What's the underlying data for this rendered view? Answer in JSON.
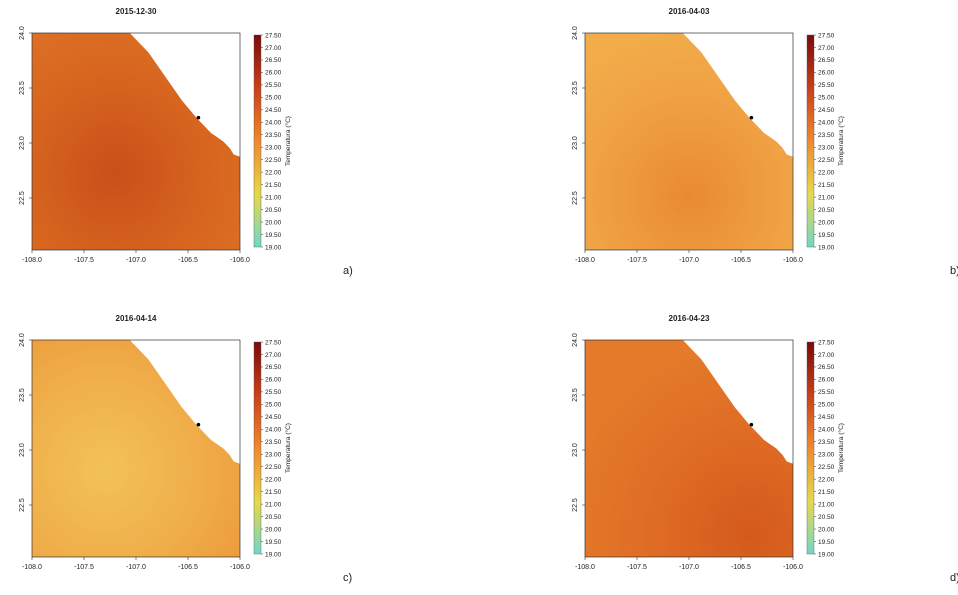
{
  "panels": [
    {
      "title": "2015-12-30",
      "letter": "a)"
    },
    {
      "title": "2016-04-03",
      "letter": "b)"
    },
    {
      "title": "2016-04-14",
      "letter": "c)"
    },
    {
      "title": "2016-04-23",
      "letter": "d)"
    }
  ],
  "x_ticks": [
    "-108.0",
    "-107.5",
    "-107.0",
    "-106.5",
    "-106.0"
  ],
  "y_ticks": [
    "24.0",
    "23.5",
    "23.0",
    "22.5"
  ],
  "colorbar": {
    "label": "Temperatura (°C)",
    "ticks": [
      "27.50",
      "27.00",
      "26.50",
      "26.00",
      "25.50",
      "25.00",
      "24.50",
      "24.00",
      "23.50",
      "23.00",
      "22.50",
      "22.00",
      "21.50",
      "21.00",
      "20.50",
      "20.00",
      "19.50",
      "19.00"
    ]
  }
}
